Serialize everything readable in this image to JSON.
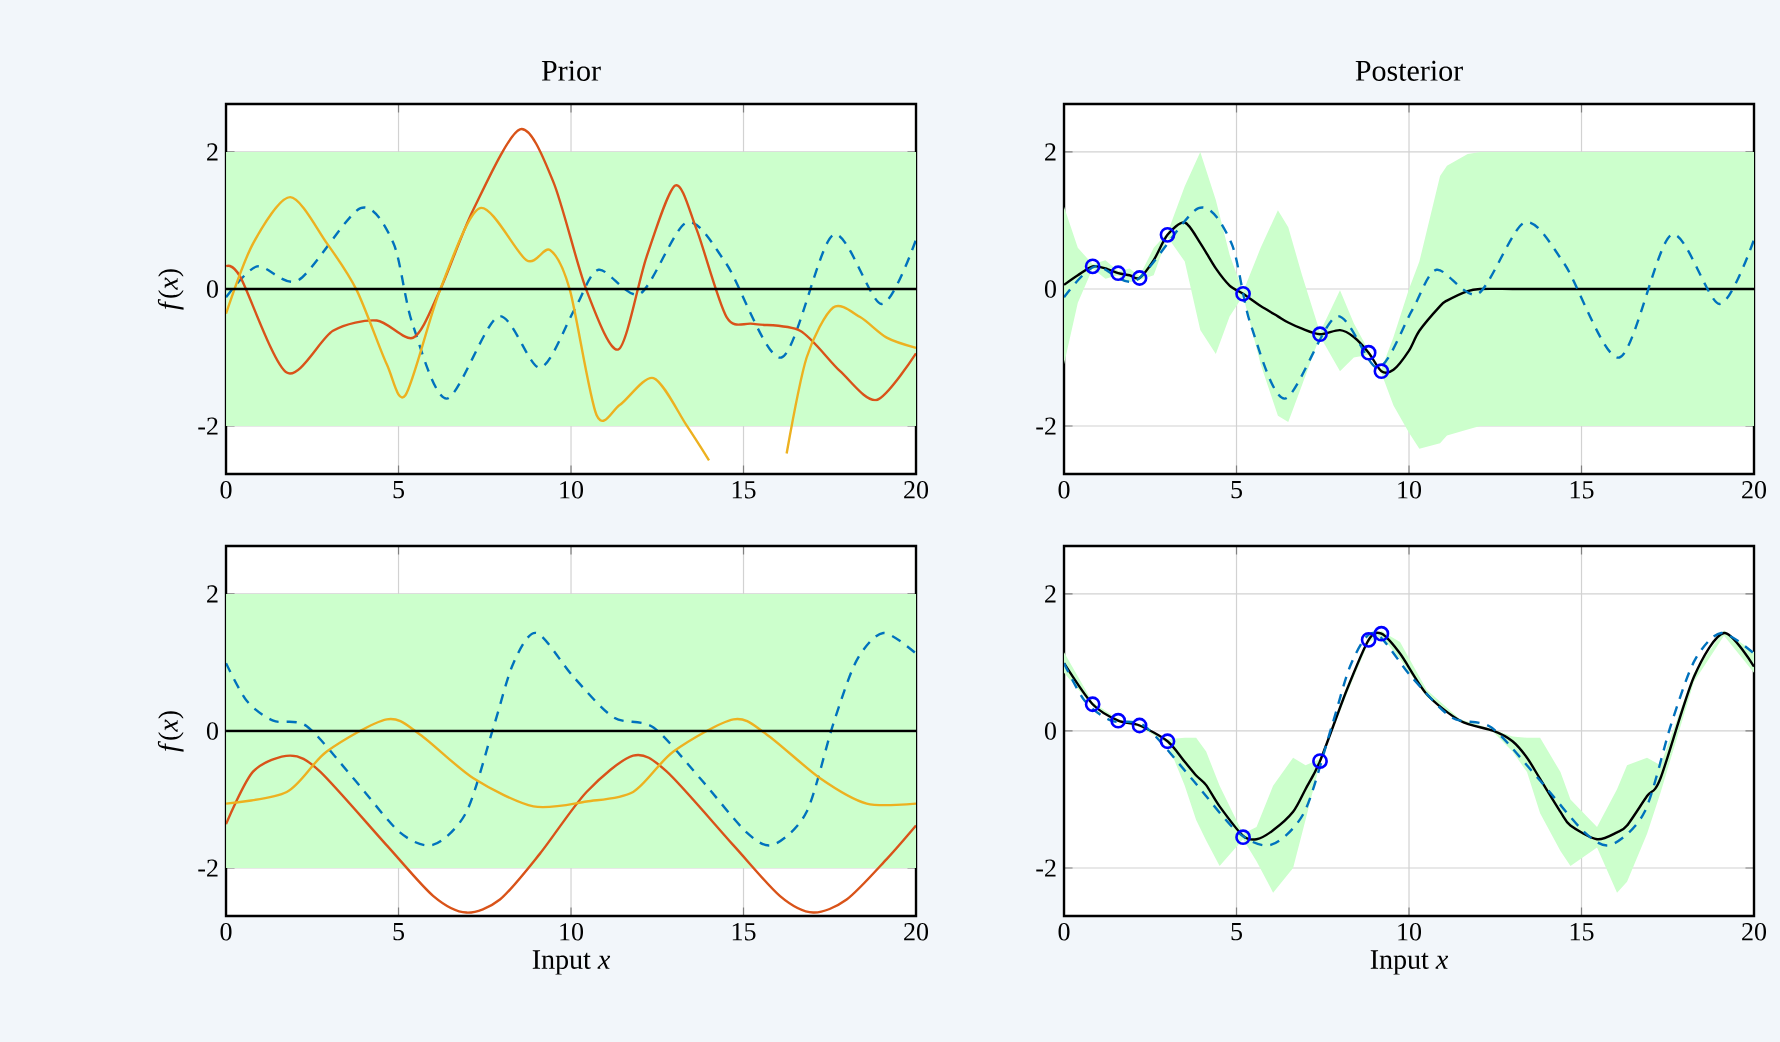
{
  "chart_data": [
    {
      "type": "line",
      "title": "Prior",
      "ylabel": "*f*(*x*)",
      "xlim": [
        0,
        20
      ],
      "ylim": [
        -2.7,
        2.7
      ],
      "xticks": [
        0,
        5,
        10,
        15,
        20
      ],
      "yticks": [
        -2,
        0,
        2
      ],
      "grid": true,
      "bands": [
        {
          "axis": "y",
          "from": -2,
          "to": 2,
          "color": "#ccffcc"
        }
      ],
      "series": [
        {
          "color": "#0072bd",
          "line_style": "dashed",
          "x": [
            0,
            0.9,
            2.1,
            3.9,
            4.85,
            5.4,
            6.4,
            7.9,
            9.1,
            10.1,
            10.8,
            12,
            13.35,
            14.5,
            16.1,
            17.6,
            19,
            20
          ],
          "values": [
            -0.12,
            0.33,
            0.13,
            1.18,
            0.67,
            -0.5,
            -1.6,
            -0.4,
            -1.15,
            -0.3,
            0.28,
            -0.07,
            0.97,
            0.37,
            -1.0,
            0.79,
            -0.22,
            0.72
          ]
        },
        {
          "color": "#d95319",
          "x": [
            0,
            0.41,
            1.76,
            3.1,
            4.37,
            5.43,
            6.2,
            7.17,
            8.52,
            9.49,
            10.45,
            11.38,
            12.19,
            13.02,
            13.64,
            14.51,
            15.29,
            16.64,
            17.8,
            18.86,
            20
          ],
          "values": [
            0.33,
            0.18,
            -1.22,
            -0.61,
            -0.46,
            -0.71,
            -0.02,
            1.16,
            2.33,
            1.56,
            -0.02,
            -0.88,
            0.47,
            1.51,
            0.87,
            -0.41,
            -0.51,
            -0.61,
            -1.2,
            -1.62,
            -0.94
          ]
        },
        {
          "color": "#edb120",
          "x": [
            0,
            0.79,
            1.86,
            2.92,
            3.79,
            4.66,
            5.2,
            6.2,
            7.36,
            8.71,
            9.39,
            9.97,
            10.74,
            11.42,
            12.39,
            13.35,
            14.0,
            15.2,
            16.25,
            16.83,
            17.6,
            18.38,
            19.15,
            20
          ],
          "values": [
            -0.36,
            0.67,
            1.34,
            0.67,
            -0.02,
            -1.1,
            -1.55,
            -0.02,
            1.18,
            0.42,
            0.57,
            -0.02,
            -1.84,
            -1.69,
            -1.3,
            -1.99,
            -2.5,
            null,
            -2.4,
            -1.0,
            -0.27,
            -0.41,
            -0.71,
            -0.86
          ]
        },
        {
          "color": "#000000",
          "x": [
            0,
            20
          ],
          "values": [
            0,
            0
          ]
        }
      ]
    },
    {
      "type": "line",
      "title": "Posterior",
      "xlim": [
        0,
        20
      ],
      "ylim": [
        -2.7,
        2.7
      ],
      "xticks": [
        0,
        5,
        10,
        15,
        20
      ],
      "yticks": [
        -2,
        0,
        2
      ],
      "grid": true,
      "series": [
        {
          "color": "#000000",
          "x": [
            0,
            0.4,
            0.83,
            1.2,
            1.57,
            1.9,
            2.19,
            2.6,
            3.0,
            3.5,
            3.95,
            4.4,
            4.8,
            5.19,
            5.7,
            6.2,
            6.5,
            6.9,
            7.42,
            8.0,
            8.4,
            8.83,
            9.2,
            9.55,
            10.0,
            10.3,
            10.9,
            11.1,
            11.7,
            12.06,
            13,
            14,
            15,
            16,
            17,
            18,
            19,
            20
          ],
          "values": [
            0.06,
            0.2,
            0.33,
            0.3,
            0.23,
            0.2,
            0.16,
            0.42,
            0.79,
            0.97,
            0.67,
            0.3,
            0.05,
            -0.07,
            -0.25,
            -0.4,
            -0.49,
            -0.58,
            -0.66,
            -0.6,
            -0.7,
            -0.93,
            -1.2,
            -1.18,
            -0.9,
            -0.61,
            -0.25,
            -0.17,
            -0.03,
            0,
            0,
            0,
            0,
            0,
            0,
            0,
            0,
            0
          ],
          "upper": [
            1.2,
            0.6,
            0.36,
            0.42,
            0.26,
            0.3,
            0.19,
            0.6,
            0.82,
            1.5,
            2.0,
            1.3,
            0.5,
            -0.04,
            0.6,
            1.15,
            0.9,
            0.2,
            -0.63,
            -0.02,
            -0.5,
            -0.9,
            -1.17,
            -0.7,
            0.0,
            0.4,
            1.65,
            1.8,
            1.97,
            2.0,
            2.0,
            2.0,
            2.0,
            2.0,
            2.0,
            2.0,
            2.0,
            2.0
          ],
          "lower": [
            -1.1,
            -0.2,
            0.3,
            0.15,
            0.2,
            0.1,
            0.13,
            0.2,
            0.76,
            0.4,
            -0.6,
            -0.95,
            -0.4,
            -0.1,
            -1.1,
            -1.85,
            -1.94,
            -1.4,
            -0.69,
            -1.2,
            -1.0,
            -0.96,
            -1.23,
            -1.7,
            -2.1,
            -2.33,
            -2.25,
            -2.14,
            -2.05,
            -2.0,
            -2.0,
            -2.0,
            -2.0,
            -2.0,
            -2.0,
            -2.0,
            -2.0,
            -2.0
          ]
        },
        {
          "color": "#0072bd",
          "line_style": "dashed",
          "x": [
            0,
            0.9,
            2.1,
            3.9,
            4.85,
            5.4,
            6.4,
            7.9,
            9.1,
            10.1,
            10.8,
            12,
            13.35,
            14.5,
            16.1,
            17.6,
            19,
            20
          ],
          "values": [
            -0.12,
            0.33,
            0.13,
            1.18,
            0.67,
            -0.5,
            -1.6,
            -0.4,
            -1.15,
            -0.3,
            0.28,
            -0.07,
            0.97,
            0.37,
            -1.0,
            0.79,
            -0.22,
            0.72
          ]
        },
        {
          "type": "scatter",
          "marker": "circle",
          "color": "#0000ff",
          "x": [
            0.83,
            1.57,
            2.19,
            3.0,
            5.19,
            7.42,
            8.83,
            9.2
          ],
          "values": [
            0.33,
            0.23,
            0.16,
            0.79,
            -0.07,
            -0.66,
            -0.93,
            -1.2
          ]
        }
      ]
    },
    {
      "type": "line",
      "ylabel": "*f*(*x*)",
      "xlabel": "Input *x*",
      "xlim": [
        0,
        20
      ],
      "ylim": [
        -2.7,
        2.7
      ],
      "xticks": [
        0,
        5,
        10,
        15,
        20
      ],
      "yticks": [
        -2,
        0,
        2
      ],
      "grid": true,
      "bands": [
        {
          "axis": "y",
          "from": -2,
          "to": 2,
          "color": "#ccffcc"
        }
      ],
      "series": [
        {
          "color": "#0072bd",
          "line_style": "dashed",
          "x": [
            0,
            0.6,
            1.37,
            2.34,
            3.69,
            5.04,
            6.01,
            6.97,
            7.75,
            8.33,
            9.0,
            10.07,
            11.23,
            12.39,
            13.74,
            15.09,
            15.86,
            16.83,
            17.6,
            18.28,
            19.05,
            20
          ],
          "values": [
            0.99,
            0.44,
            0.15,
            0.07,
            -0.69,
            -1.48,
            -1.66,
            -1.18,
            0.05,
            0.99,
            1.43,
            0.79,
            0.2,
            0.05,
            -0.69,
            -1.48,
            -1.66,
            -1.18,
            0.1,
            1.03,
            1.43,
            1.13
          ]
        },
        {
          "color": "#d95319",
          "x": [
            0,
            0.79,
            1.86,
            2.72,
            4.66,
            6.01,
            6.97,
            7.94,
            9.1,
            10.45,
            11.8,
            12.77,
            14.71,
            16.06,
            17.02,
            17.99,
            19.15,
            20
          ],
          "values": [
            -1.36,
            -0.59,
            -0.36,
            -0.59,
            -1.67,
            -2.41,
            -2.65,
            -2.46,
            -1.79,
            -0.89,
            -0.36,
            -0.59,
            -1.67,
            -2.41,
            -2.65,
            -2.46,
            -1.87,
            -1.38
          ]
        },
        {
          "color": "#edb120",
          "x": [
            0,
            1.76,
            2.92,
            4.66,
            5.62,
            7.17,
            8.91,
            10.45,
            11.8,
            12.97,
            14.71,
            15.67,
            17.22,
            18.57,
            20
          ],
          "values": [
            -1.06,
            -0.89,
            -0.3,
            0.17,
            -0.05,
            -0.69,
            -1.1,
            -1.03,
            -0.89,
            -0.3,
            0.17,
            -0.05,
            -0.69,
            -1.06,
            -1.06
          ]
        },
        {
          "color": "#000000",
          "x": [
            0,
            20
          ],
          "values": [
            0,
            0
          ]
        }
      ]
    },
    {
      "type": "line",
      "xlabel": "Input *x*",
      "xlim": [
        0,
        20
      ],
      "ylim": [
        -2.7,
        2.7
      ],
      "xticks": [
        0,
        5,
        10,
        15,
        20
      ],
      "yticks": [
        -2,
        0,
        2
      ],
      "grid": true,
      "series": [
        {
          "color": "#000000",
          "x": [
            0,
            0.83,
            1.57,
            2.19,
            3.0,
            3.5,
            3.83,
            4.12,
            4.51,
            5.19,
            5.58,
            6.06,
            6.64,
            7.0,
            7.42,
            8.19,
            8.83,
            9.2,
            9.74,
            10.51,
            11.48,
            12.45,
            13.0,
            13.42,
            13.8,
            14.39,
            14.68,
            15.45,
            16.03,
            16.32,
            16.9,
            17.29,
            18.26,
            19.13,
            20
          ],
          "values": [
            0.99,
            0.39,
            0.15,
            0.08,
            -0.15,
            -0.45,
            -0.65,
            -0.79,
            -1.1,
            -1.53,
            -1.58,
            -1.45,
            -1.18,
            -0.85,
            -0.44,
            0.59,
            1.33,
            1.42,
            1.13,
            0.54,
            0.15,
            0,
            -0.15,
            -0.39,
            -0.7,
            -1.18,
            -1.38,
            -1.58,
            -1.48,
            -1.38,
            -0.95,
            -0.69,
            0.79,
            1.43,
            0.94
          ],
          "upper": [
            1.15,
            0.42,
            0.17,
            0.1,
            -0.12,
            -0.1,
            -0.1,
            -0.3,
            -0.8,
            -1.5,
            -1.4,
            -0.8,
            -0.39,
            -0.5,
            -0.41,
            0.65,
            1.36,
            1.46,
            1.3,
            0.6,
            0.17,
            0.02,
            -0.08,
            -0.1,
            -0.1,
            -0.6,
            -1.0,
            -1.4,
            -0.85,
            -0.5,
            -0.39,
            -0.5,
            0.85,
            1.47,
            1.15
          ],
          "lower": [
            0.85,
            0.36,
            0.13,
            0.06,
            -0.18,
            -0.8,
            -1.3,
            -1.6,
            -1.97,
            -1.58,
            -1.9,
            -2.36,
            -2.0,
            -1.3,
            -0.47,
            0.53,
            1.3,
            1.38,
            1.05,
            0.5,
            0.13,
            -0.02,
            -0.3,
            -0.6,
            -1.2,
            -1.75,
            -1.97,
            -1.7,
            -2.36,
            -2.2,
            -1.5,
            -0.9,
            0.72,
            1.39,
            0.85
          ]
        },
        {
          "color": "#0072bd",
          "line_style": "dashed",
          "x": [
            0,
            0.6,
            1.37,
            2.34,
            3.69,
            5.04,
            6.01,
            6.97,
            7.75,
            8.33,
            9.0,
            10.07,
            11.23,
            12.39,
            13.74,
            15.09,
            15.86,
            16.83,
            17.6,
            18.28,
            19.05,
            20
          ],
          "values": [
            0.99,
            0.44,
            0.15,
            0.07,
            -0.69,
            -1.48,
            -1.66,
            -1.18,
            0.05,
            0.99,
            1.43,
            0.79,
            0.2,
            0.05,
            -0.69,
            -1.48,
            -1.66,
            -1.18,
            0.1,
            1.03,
            1.43,
            1.13
          ]
        },
        {
          "type": "scatter",
          "marker": "circle",
          "color": "#0000ff",
          "x": [
            0.83,
            1.57,
            2.19,
            3.0,
            5.19,
            7.42,
            8.83,
            9.2
          ],
          "values": [
            0.39,
            0.15,
            0.08,
            -0.15,
            -1.55,
            -0.44,
            1.33,
            1.42
          ]
        }
      ]
    }
  ]
}
